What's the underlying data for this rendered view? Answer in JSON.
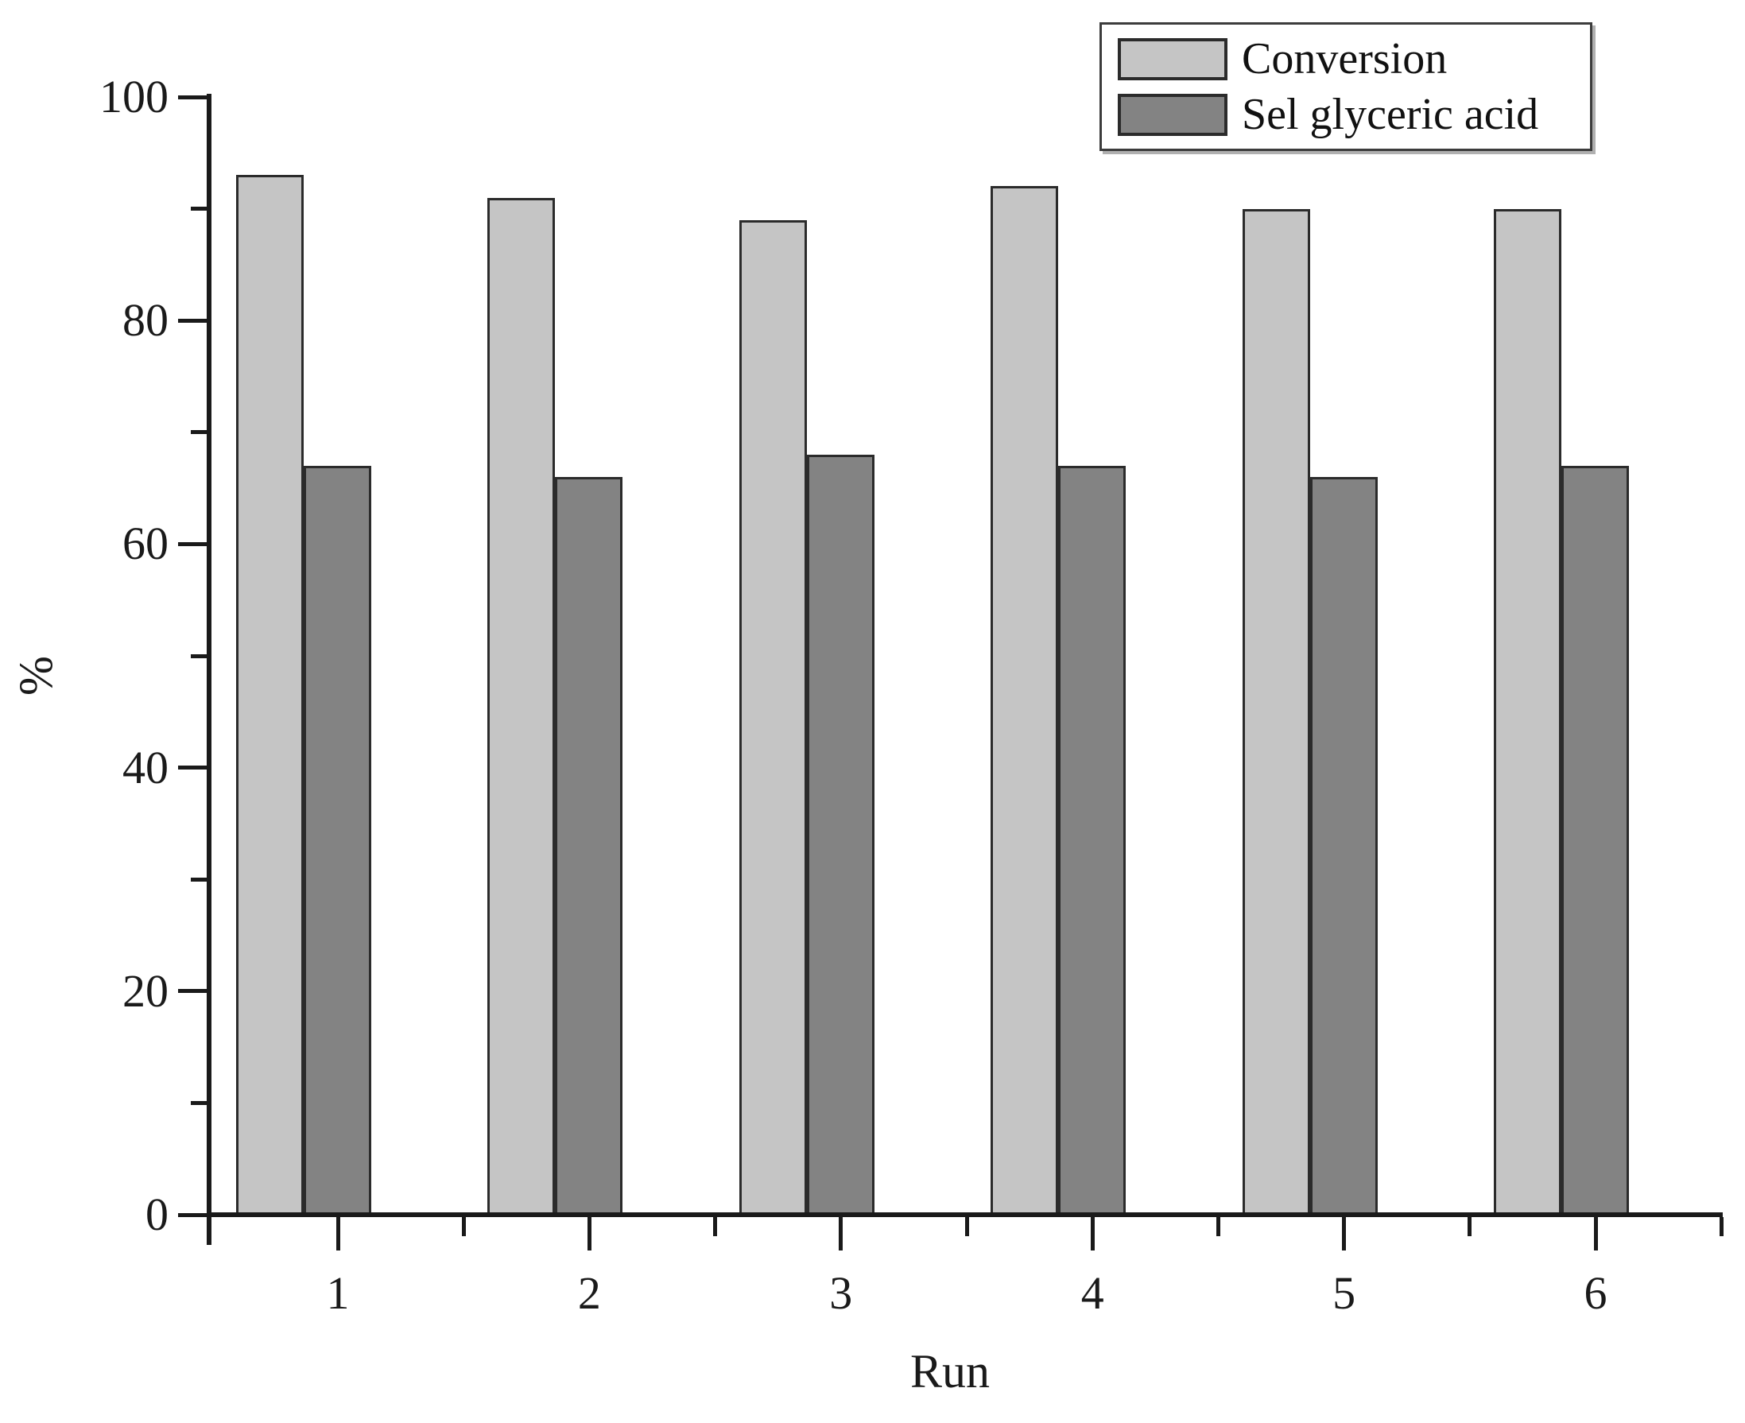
{
  "figure": {
    "background": "#ffffff",
    "text_color": "#1a1a1a"
  },
  "chart_data": {
    "type": "bar",
    "title": "",
    "xlabel": "Run",
    "ylabel": "%",
    "categories": [
      "1",
      "2",
      "3",
      "4",
      "5",
      "6"
    ],
    "series": [
      {
        "name": "Conversion",
        "values": [
          93,
          91,
          89,
          92,
          90,
          90
        ],
        "fill": "#c5c5c5"
      },
      {
        "name": "Sel glyceric acid",
        "values": [
          67,
          66,
          68,
          67,
          66,
          67
        ],
        "fill": "#838383"
      }
    ],
    "bar_outline": "#2b2b2b",
    "ylim": [
      0,
      100
    ],
    "yticks_major": [
      0,
      20,
      40,
      60,
      80,
      100
    ],
    "yticks_minor": [
      10,
      30,
      50,
      70,
      90
    ],
    "grid": false,
    "legend": {
      "position": "top-right",
      "entries": [
        "Conversion",
        "Sel glyceric acid"
      ]
    }
  }
}
